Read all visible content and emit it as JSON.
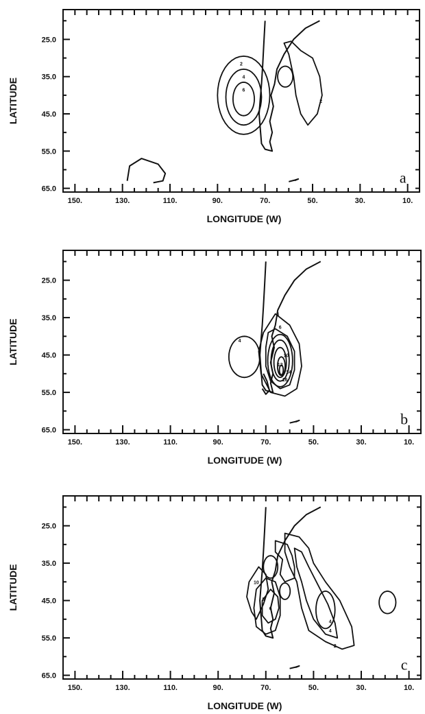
{
  "chart_data": [
    {
      "type": "contour",
      "panel_label": "a",
      "xlabel": "LONGITUDE    (W)",
      "ylabel": "LATITUDE",
      "x_ticks": [
        "150.",
        "130.",
        "110.",
        "90.",
        "70.",
        "50.",
        "30.",
        "10."
      ],
      "y_ticks": [
        "25.0",
        "35.0",
        "45.0",
        "55.0",
        "65.0"
      ],
      "xlim": [
        155,
        5
      ],
      "ylim": [
        17,
        66
      ],
      "y_inverted": true,
      "contour_labels": [
        "2",
        "4",
        "6",
        "2"
      ]
    },
    {
      "type": "contour",
      "panel_label": "b",
      "xlabel": "LONGITUDE    (W)",
      "ylabel": "LATITUDE",
      "x_ticks": [
        "150.",
        "130.",
        "110.",
        "90.",
        "70.",
        "50.",
        "30.",
        "10."
      ],
      "y_ticks": [
        "25.0",
        "35.0",
        "45.0",
        "55.0",
        "65.0"
      ],
      "xlim": [
        155,
        5
      ],
      "ylim": [
        17,
        66
      ],
      "y_inverted": true,
      "contour_labels": [
        "4",
        "6",
        "4",
        "10",
        "12",
        "14",
        "16"
      ]
    },
    {
      "type": "contour",
      "panel_label": "c",
      "xlabel": "LONGITUDE    (W)",
      "ylabel": "LATITUDE",
      "x_ticks": [
        "150.",
        "130.",
        "110.",
        "90.",
        "70.",
        "50.",
        "30.",
        "10."
      ],
      "y_ticks": [
        "25.0",
        "35.0",
        "45.0",
        "55.0",
        "65.0"
      ],
      "xlim": [
        155,
        5
      ],
      "ylim": [
        17,
        66
      ],
      "y_inverted": true,
      "contour_labels": [
        "10",
        "8",
        "6",
        "4",
        "6",
        "4",
        "2"
      ]
    }
  ]
}
